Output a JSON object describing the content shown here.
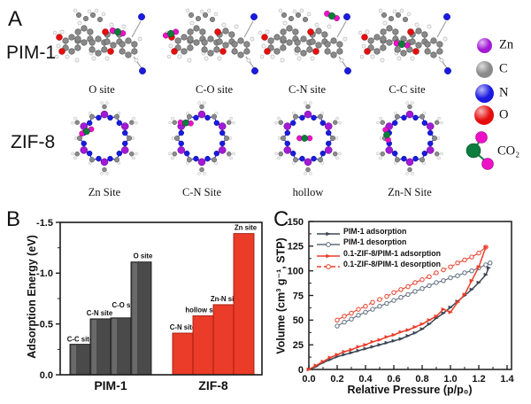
{
  "panels": {
    "a": {
      "label": "A",
      "rows": [
        {
          "label": "PIM-1",
          "type": "pim1",
          "sites": [
            "O site",
            "C-O site",
            "C-N site",
            "C-C site"
          ]
        },
        {
          "label": "ZIF-8",
          "type": "zif8",
          "sites": [
            "Zn Site",
            "C-N Site",
            "hollow",
            "Zn-N Site"
          ]
        }
      ],
      "atom_legend": [
        {
          "label": "Zn",
          "color": "#a31ad6"
        },
        {
          "label": "C",
          "color": "#8a8a8a"
        },
        {
          "label": "N",
          "color": "#1a1ae0"
        },
        {
          "label": "O",
          "color": "#e60d0d"
        },
        {
          "label": "CO₂",
          "color_c": "#0c7d3c",
          "color_o": "#ee10c8"
        }
      ]
    },
    "b": {
      "label": "B"
    },
    "c": {
      "label": "C"
    }
  },
  "chart_data": [
    {
      "type": "bar",
      "panel": "B",
      "ylabel": "Adsorption Energy (eV)",
      "ylim": [
        0,
        -1.5
      ],
      "ytick_labels": [
        "0.0",
        "-0.5",
        "-1.0",
        "-1.5"
      ],
      "grid": false,
      "groups": [
        {
          "label": "PIM-1",
          "bar_color": "#4a4a4a",
          "bars": [
            {
              "site": "C-C site",
              "value": -0.3
            },
            {
              "site": "C-N site",
              "value": -0.55
            },
            {
              "site": "C-O site",
              "value": -0.56
            },
            {
              "site": "O site",
              "value": -1.11
            }
          ]
        },
        {
          "label": "ZIF-8",
          "bar_color": "#ea3c28",
          "bars": [
            {
              "site": "C-N site",
              "value": -0.41
            },
            {
              "site": "hollow site",
              "value": -0.58
            },
            {
              "site": "Zn-N site",
              "value": -0.69
            },
            {
              "site": "Zn site",
              "value": -1.39
            }
          ]
        }
      ]
    },
    {
      "type": "line",
      "panel": "C",
      "xlabel": "Relative Pressure (p/p₀)",
      "ylabel": "Volume (cm³ g⁻¹, STP)",
      "xlim": [
        0,
        1.4
      ],
      "ylim": [
        0,
        150
      ],
      "xticks": [
        0.0,
        0.2,
        0.4,
        0.6,
        0.8,
        1.0,
        1.2,
        1.4
      ],
      "yticks": [
        0,
        25,
        50,
        75,
        100,
        125,
        150
      ],
      "grid": false,
      "legend_position": "top-left",
      "series": [
        {
          "name": "PIM-1 adsorption",
          "color": "#3d4653",
          "line": "solid",
          "width": 1.5,
          "marker": "triangle-filled",
          "points": [
            [
              0,
              0
            ],
            [
              0.05,
              3
            ],
            [
              0.1,
              7
            ],
            [
              0.15,
              10
            ],
            [
              0.2,
              13
            ],
            [
              0.25,
              15
            ],
            [
              0.3,
              17
            ],
            [
              0.35,
              19
            ],
            [
              0.4,
              21
            ],
            [
              0.45,
              23
            ],
            [
              0.5,
              25
            ],
            [
              0.55,
              27
            ],
            [
              0.6,
              29
            ],
            [
              0.65,
              31
            ],
            [
              0.7,
              34
            ],
            [
              0.75,
              37
            ],
            [
              0.8,
              41
            ],
            [
              0.85,
              46
            ],
            [
              0.9,
              52
            ],
            [
              0.95,
              57
            ],
            [
              1.0,
              63
            ],
            [
              1.05,
              69
            ],
            [
              1.1,
              75
            ],
            [
              1.15,
              81
            ],
            [
              1.2,
              88
            ],
            [
              1.25,
              96
            ],
            [
              1.27,
              103
            ]
          ]
        },
        {
          "name": "PIM-1 desorption",
          "color": "#5d6b7c",
          "line": "solid",
          "width": 1.1,
          "marker": "circle-open",
          "points": [
            [
              0.2,
              44
            ],
            [
              0.25,
              48
            ],
            [
              0.3,
              51
            ],
            [
              0.35,
              55
            ],
            [
              0.4,
              58
            ],
            [
              0.45,
              61
            ],
            [
              0.5,
              64
            ],
            [
              0.55,
              67
            ],
            [
              0.6,
              70
            ],
            [
              0.65,
              73
            ],
            [
              0.7,
              76
            ],
            [
              0.75,
              79
            ],
            [
              0.8,
              82
            ],
            [
              0.85,
              85
            ],
            [
              0.9,
              88
            ],
            [
              0.95,
              90
            ],
            [
              1.0,
              93
            ],
            [
              1.05,
              95
            ],
            [
              1.1,
              98
            ],
            [
              1.15,
              100
            ],
            [
              1.2,
              103
            ],
            [
              1.25,
              106
            ],
            [
              1.28,
              108
            ]
          ]
        },
        {
          "name": "0.1-ZIF-8/PIM-1 adsorption",
          "color": "#ea3c28",
          "line": "solid",
          "width": 1.5,
          "marker": "triangle-filled",
          "points": [
            [
              0,
              0
            ],
            [
              0.05,
              4
            ],
            [
              0.1,
              8
            ],
            [
              0.15,
              12
            ],
            [
              0.2,
              15
            ],
            [
              0.25,
              18
            ],
            [
              0.3,
              20
            ],
            [
              0.35,
              23
            ],
            [
              0.4,
              25
            ],
            [
              0.45,
              28
            ],
            [
              0.5,
              30
            ],
            [
              0.55,
              33
            ],
            [
              0.6,
              35
            ],
            [
              0.65,
              38
            ],
            [
              0.7,
              40
            ],
            [
              0.75,
              43
            ],
            [
              0.8,
              46
            ],
            [
              0.85,
              50
            ],
            [
              0.9,
              54
            ],
            [
              0.95,
              61
            ],
            [
              1.0,
              58
            ],
            [
              1.05,
              68
            ],
            [
              1.1,
              76
            ],
            [
              1.15,
              90
            ],
            [
              1.2,
              104
            ],
            [
              1.25,
              124
            ]
          ]
        },
        {
          "name": "0.1-ZIF-8/PIM-1 desorption",
          "color": "#ea3c28",
          "line": "dashed",
          "width": 1.1,
          "marker": "circle-open",
          "points": [
            [
              0.2,
              50
            ],
            [
              0.25,
              54
            ],
            [
              0.3,
              57
            ],
            [
              0.35,
              61
            ],
            [
              0.4,
              64
            ],
            [
              0.45,
              68
            ],
            [
              0.5,
              71
            ],
            [
              0.55,
              74
            ],
            [
              0.6,
              78
            ],
            [
              0.65,
              81
            ],
            [
              0.7,
              84
            ],
            [
              0.75,
              88
            ],
            [
              0.8,
              91
            ],
            [
              0.85,
              94
            ],
            [
              0.9,
              98
            ],
            [
              0.95,
              101
            ],
            [
              1.0,
              104
            ],
            [
              1.05,
              108
            ],
            [
              1.1,
              111
            ],
            [
              1.15,
              114
            ],
            [
              1.2,
              118
            ],
            [
              1.25,
              124
            ]
          ]
        }
      ]
    }
  ]
}
